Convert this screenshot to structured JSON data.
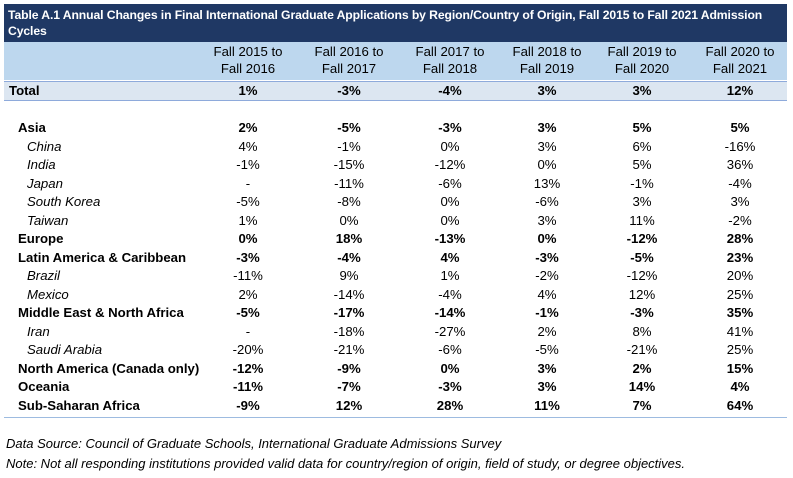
{
  "title": "Table A.1 Annual Changes in Final International Graduate Applications by Region/Country of Origin, Fall 2015 to Fall 2021 Admission Cycles",
  "columns": [
    "Fall 2015 to\nFall 2016",
    "Fall 2016 to\nFall 2017",
    "Fall 2017 to\nFall 2018",
    "Fall 2018 to\nFall 2019",
    "Fall 2019 to\nFall 2020",
    "Fall 2020 to\nFall 2021"
  ],
  "total": {
    "label": "Total",
    "values": [
      "1%",
      "-3%",
      "-4%",
      "3%",
      "3%",
      "12%"
    ]
  },
  "rows": [
    {
      "label": "Asia",
      "type": "region",
      "values": [
        "2%",
        "-5%",
        "-3%",
        "3%",
        "5%",
        "5%"
      ]
    },
    {
      "label": "China",
      "type": "country",
      "values": [
        "4%",
        "-1%",
        "0%",
        "3%",
        "6%",
        "-16%"
      ]
    },
    {
      "label": "India",
      "type": "country",
      "values": [
        "-1%",
        "-15%",
        "-12%",
        "0%",
        "5%",
        "36%"
      ]
    },
    {
      "label": "Japan",
      "type": "country",
      "values": [
        "-",
        "-11%",
        "-6%",
        "13%",
        "-1%",
        "-4%"
      ]
    },
    {
      "label": "South Korea",
      "type": "country",
      "values": [
        "-5%",
        "-8%",
        "0%",
        "-6%",
        "3%",
        "3%"
      ]
    },
    {
      "label": "Taiwan",
      "type": "country",
      "values": [
        "1%",
        "0%",
        "0%",
        "3%",
        "11%",
        "-2%"
      ]
    },
    {
      "label": "Europe",
      "type": "region",
      "values": [
        "0%",
        "18%",
        "-13%",
        "0%",
        "-12%",
        "28%"
      ]
    },
    {
      "label": "Latin America & Caribbean",
      "type": "region",
      "values": [
        "-3%",
        "-4%",
        "4%",
        "-3%",
        "-5%",
        "23%"
      ]
    },
    {
      "label": "Brazil",
      "type": "country",
      "values": [
        "-11%",
        "9%",
        "1%",
        "-2%",
        "-12%",
        "20%"
      ]
    },
    {
      "label": "Mexico",
      "type": "country",
      "values": [
        "2%",
        "-14%",
        "-4%",
        "4%",
        "12%",
        "25%"
      ]
    },
    {
      "label": "Middle East & North Africa",
      "type": "region",
      "values": [
        "-5%",
        "-17%",
        "-14%",
        "-1%",
        "-3%",
        "35%"
      ]
    },
    {
      "label": "Iran",
      "type": "country",
      "values": [
        "-",
        "-18%",
        "-27%",
        "2%",
        "8%",
        "41%"
      ]
    },
    {
      "label": "Saudi Arabia",
      "type": "country",
      "values": [
        "-20%",
        "-21%",
        "-6%",
        "-5%",
        "-21%",
        "25%"
      ]
    },
    {
      "label": "North America (Canada only)",
      "type": "region",
      "values": [
        "-12%",
        "-9%",
        "0%",
        "3%",
        "2%",
        "15%"
      ]
    },
    {
      "label": "Oceania",
      "type": "region",
      "values": [
        "-11%",
        "-7%",
        "-3%",
        "3%",
        "14%",
        "4%"
      ]
    },
    {
      "label": "Sub-Saharan Africa",
      "type": "region",
      "values": [
        "-9%",
        "12%",
        "28%",
        "11%",
        "7%",
        "64%"
      ]
    }
  ],
  "footnotes": [
    "Data Source: Council of Graduate Schools, International Graduate Admissions Survey",
    "Note: Not all responding institutions provided valid data for country/region of origin, field of study, or degree objectives."
  ]
}
